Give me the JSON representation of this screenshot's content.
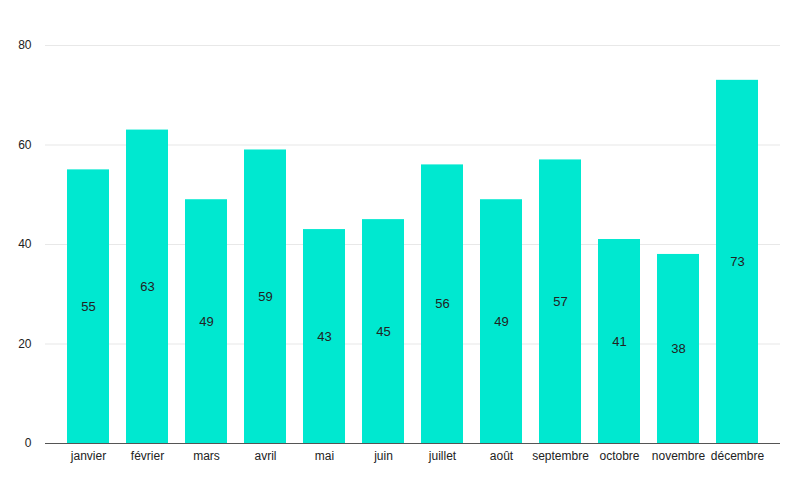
{
  "chart_data": {
    "type": "bar",
    "categories": [
      "janvier",
      "février",
      "mars",
      "avril",
      "mai",
      "juin",
      "juillet",
      "août",
      "septembre",
      "octobre",
      "novembre",
      "décembre"
    ],
    "values": [
      55,
      63,
      49,
      59,
      43,
      45,
      56,
      49,
      57,
      41,
      38,
      73
    ],
    "color": "#00e8d0",
    "ylim": [
      0,
      80
    ],
    "yticks": [
      0,
      20,
      40,
      60,
      80
    ],
    "grid": true,
    "data_labels": true
  }
}
